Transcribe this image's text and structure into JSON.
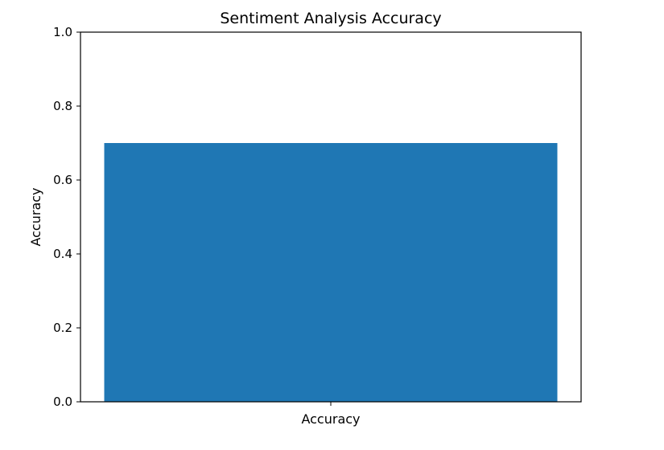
{
  "chart_data": {
    "type": "bar",
    "title": "Sentiment Analysis Accuracy",
    "categories": [
      "Accuracy"
    ],
    "values": [
      0.7
    ],
    "xlabel": "Accuracy",
    "ylabel": "Accuracy",
    "ylim": [
      0,
      1
    ],
    "yticks": [
      0.0,
      0.2,
      0.4,
      0.6,
      0.8,
      1.0
    ],
    "ytick_labels": [
      "0.0",
      "0.2",
      "0.4",
      "0.6",
      "0.8",
      "1.0"
    ],
    "xtick_labels": [
      "Accuracy"
    ],
    "grid": false,
    "bar_color": "#1f77b4",
    "axis_color": "#000000"
  }
}
